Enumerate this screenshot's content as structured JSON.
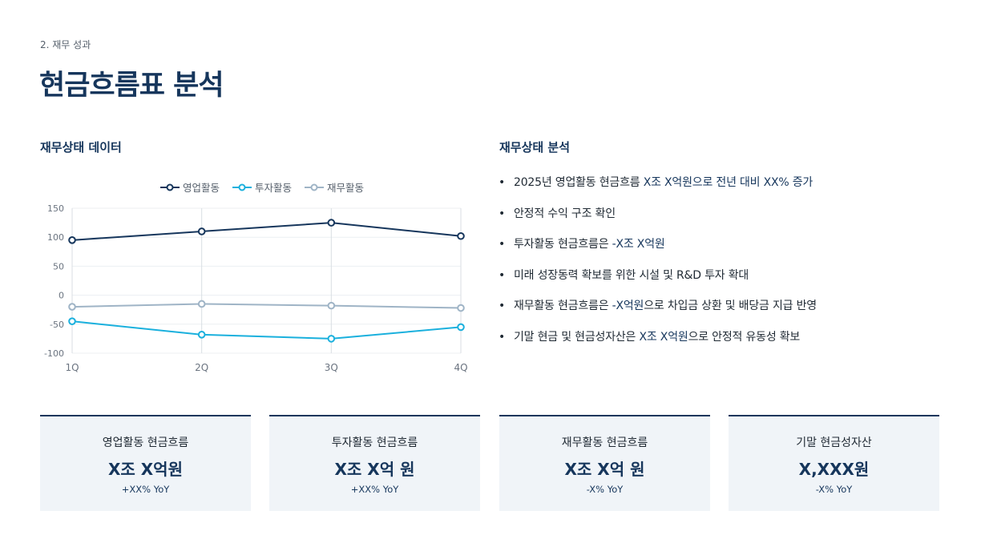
{
  "header": {
    "section": "2. 재무 성과",
    "title": "현금흐름표 분석"
  },
  "left_panel": {
    "heading": "재무상태 데이터"
  },
  "right_panel": {
    "heading": "재무상태 분석"
  },
  "colors": {
    "navy": "#16365c",
    "operating": "#16365c",
    "investing": "#1ab0dd",
    "financing": "#9fb4c6",
    "card_bg": "#f0f4f8"
  },
  "chart_data": {
    "type": "line",
    "categories": [
      "1Q",
      "2Q",
      "3Q",
      "4Q"
    ],
    "series": [
      {
        "name": "영업활동",
        "values": [
          95,
          110,
          125,
          102
        ]
      },
      {
        "name": "투자활동",
        "values": [
          -45,
          -68,
          -75,
          -55
        ]
      },
      {
        "name": "재무활동",
        "values": [
          -20,
          -15,
          -18,
          -22
        ]
      }
    ],
    "ylim": [
      -100,
      150
    ],
    "yticks": [
      150,
      100,
      50,
      0,
      -50,
      -100
    ],
    "grid": true,
    "legend_position": "top-center",
    "xlabel": "",
    "ylabel": ""
  },
  "bullets": [
    {
      "pre": "2025년 영업활동 현금흐름 ",
      "hl": "X조 X억원으로 전년 대비 XX% 증가",
      "post": ""
    },
    {
      "pre": "안정적 수익 구조 확인",
      "hl": "",
      "post": ""
    },
    {
      "pre": "투자활동 현금흐름은 ",
      "hl": "-X조 X억원",
      "post": ""
    },
    {
      "pre": "미래 성장동력 확보를 위한 시설 및 R&D 투자 확대",
      "hl": "",
      "post": ""
    },
    {
      "pre": "재무활동 현금흐름은 ",
      "hl": "-X억원",
      "post": "으로 차입금 상환 및 배당금 지급 반영"
    },
    {
      "pre": "기말 현금 및 현금성자산은 ",
      "hl": "X조 X억원",
      "post": "으로 안정적 유동성 확보"
    }
  ],
  "kpis": [
    {
      "label": "영업활동 현금흐름",
      "value": "X조 X억원",
      "change": "+XX% YoY"
    },
    {
      "label": "투자활동 현금흐름",
      "value": "X조 X억 원",
      "change": "+XX% YoY"
    },
    {
      "label": "재무활동 현금흐름",
      "value": "X조 X억 원",
      "change": "-X% YoY"
    },
    {
      "label": "기말 현금성자산",
      "value": "X,XXX원",
      "change": "-X% YoY"
    }
  ]
}
